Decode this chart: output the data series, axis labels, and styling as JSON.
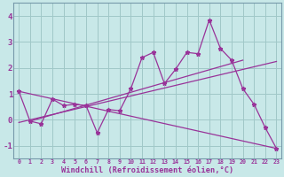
{
  "xlabel": "Windchill (Refroidissement éolien,°C)",
  "background_color": "#c8e8e8",
  "grid_color": "#a0c8c8",
  "line_color": "#993399",
  "spine_color": "#7799aa",
  "xlim": [
    -0.5,
    23.4
  ],
  "ylim": [
    -1.5,
    4.5
  ],
  "xticks": [
    0,
    1,
    2,
    3,
    4,
    5,
    6,
    7,
    8,
    9,
    10,
    11,
    12,
    13,
    14,
    15,
    16,
    17,
    18,
    19,
    20,
    21,
    22,
    23
  ],
  "yticks": [
    -1,
    0,
    1,
    2,
    3,
    4
  ],
  "y_main": [
    1.1,
    -0.05,
    -0.15,
    0.8,
    0.55,
    0.6,
    0.55,
    -0.5,
    0.4,
    0.35,
    1.2,
    2.4,
    2.6,
    1.4,
    1.95,
    2.6,
    2.55,
    3.85,
    2.75,
    2.3,
    1.2,
    0.6,
    -0.3,
    -1.1
  ],
  "trend1_x": [
    0,
    23
  ],
  "trend1_y": [
    -0.1,
    2.25
  ],
  "trend2_x": [
    0,
    23
  ],
  "trend2_y": [
    1.1,
    -1.1
  ],
  "trend3_x": [
    1,
    20
  ],
  "trend3_y": [
    -0.05,
    2.3
  ]
}
